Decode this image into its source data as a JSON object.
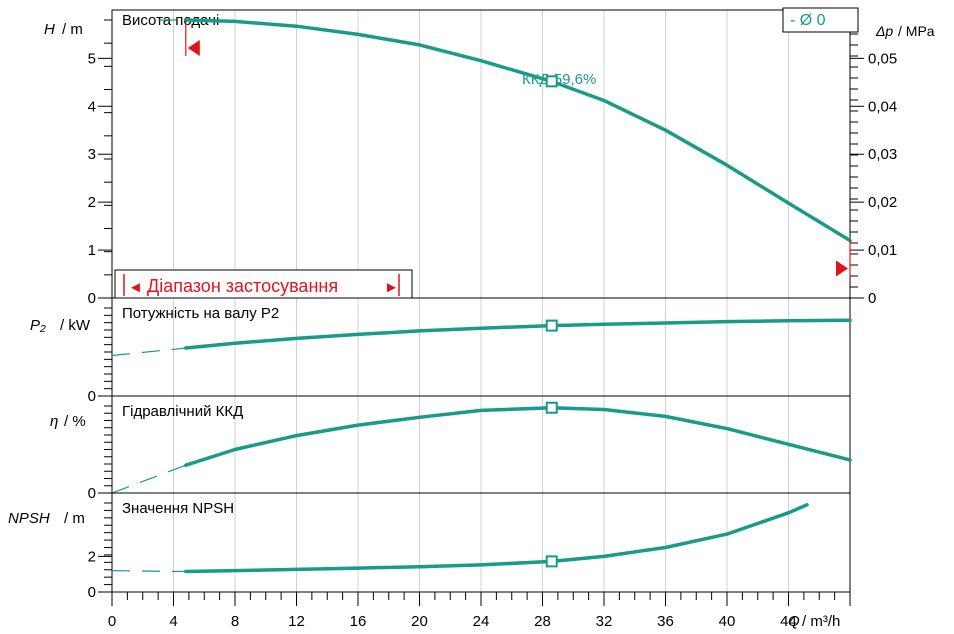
{
  "colors": {
    "curve": "#1a9a88",
    "marker_red": "#e0141a",
    "axis": "#000000",
    "grid": "#d0d0d0"
  },
  "q_axis": {
    "label_sym": "Q",
    "label_unit": "/ m³/h",
    "ticks": [
      0,
      4,
      8,
      12,
      16,
      20,
      24,
      28,
      32,
      36,
      40,
      44
    ],
    "range": [
      0,
      48
    ]
  },
  "head_panel": {
    "title": "Висота подачі",
    "ylabel_sym": "H",
    "ylabel_unit": "/ m",
    "yticks": [
      0,
      1,
      2,
      3,
      4,
      5
    ],
    "ylim": [
      0,
      5.8
    ],
    "right_label_sym": "Δp",
    "right_label_unit": "/ MPa",
    "right_ticks": [
      "0",
      "0,01",
      "0,02",
      "0,03",
      "0,04",
      "0,05"
    ],
    "efficiency_label": "ККД  59,6%",
    "range_label": "Діапазон застосування",
    "range_arrow_left": "◄",
    "range_arrow_right": "►",
    "impeller_label": "-   Ø 0"
  },
  "power_panel": {
    "title": "Потужність на валу P2",
    "ylabel_sym": "P₂",
    "ylabel_unit": "/ kW",
    "yticks": [
      0
    ]
  },
  "eff_panel": {
    "title": "Гідравлічний ККД",
    "ylabel_sym": "η",
    "ylabel_unit": "/ %",
    "yticks": [
      0
    ]
  },
  "npsh_panel": {
    "title": "Значення NPSH",
    "ylabel_sym": "NPSH",
    "ylabel_unit": "/ m",
    "yticks": [
      0,
      2
    ]
  },
  "chart_data": [
    {
      "type": "line",
      "title": "Висота подачі",
      "xlabel": "Q / m³/h",
      "ylabel": "H / m",
      "ylim": [
        0,
        5.8
      ],
      "series": [
        {
          "x": [
            4.8,
            8,
            12,
            16,
            20,
            24,
            28.6,
            32,
            36,
            40,
            44,
            48
          ],
          "y": [
            5.8,
            5.77,
            5.67,
            5.5,
            5.28,
            4.95,
            4.52,
            4.12,
            3.5,
            2.77,
            1.98,
            1.2
          ]
        }
      ],
      "operating_point": {
        "x": 28.6,
        "y": 4.52
      },
      "extrapolated": {
        "x": [
          3.0,
          4.8
        ],
        "y": [
          5.8,
          5.8
        ]
      },
      "application_range": [
        4.8,
        48
      ]
    },
    {
      "type": "line",
      "title": "Потужність на валу P2",
      "xlabel": "Q / m³/h",
      "ylabel": "P₂ / kW",
      "series": [
        {
          "x": [
            4.8,
            8,
            12,
            16,
            20,
            24,
            28.6,
            32,
            36,
            40,
            44,
            48
          ],
          "y": [
            0.545,
            0.6,
            0.655,
            0.7,
            0.74,
            0.77,
            0.8,
            0.815,
            0.83,
            0.845,
            0.855,
            0.86
          ]
        }
      ],
      "operating_point": {
        "x": 28.6,
        "y": 0.8
      },
      "extrapolated": {
        "x": [
          0,
          4.8
        ],
        "y": [
          0.46,
          0.545
        ]
      }
    },
    {
      "type": "line",
      "title": "Гідравлічний ККД",
      "xlabel": "Q / m³/h",
      "ylabel": "η / %",
      "series": [
        {
          "x": [
            4.8,
            8,
            12,
            16,
            20,
            24,
            28.6,
            32,
            36,
            40,
            44,
            48
          ],
          "y": [
            0.32,
            0.5,
            0.66,
            0.78,
            0.87,
            0.95,
            0.98,
            0.96,
            0.88,
            0.74,
            0.56,
            0.38
          ]
        }
      ],
      "operating_point": {
        "x": 28.6,
        "y": 0.98
      },
      "extrapolated": {
        "x": [
          0,
          4.8
        ],
        "y": [
          0,
          0.32
        ]
      }
    },
    {
      "type": "line",
      "title": "Значення NPSH",
      "xlabel": "Q / m³/h",
      "ylabel": "NPSH / m",
      "ylim": [
        0,
        5
      ],
      "series": [
        {
          "x": [
            4.8,
            8,
            12,
            16,
            20,
            24,
            28.6,
            32,
            36,
            40,
            44,
            45.2
          ],
          "y": [
            1.15,
            1.2,
            1.27,
            1.34,
            1.42,
            1.52,
            1.72,
            2.0,
            2.5,
            3.25,
            4.45,
            4.9
          ]
        }
      ],
      "operating_point": {
        "x": 28.6,
        "y": 1.72
      },
      "extrapolated": {
        "x": [
          0,
          4.8
        ],
        "y": [
          1.2,
          1.15
        ]
      }
    }
  ]
}
